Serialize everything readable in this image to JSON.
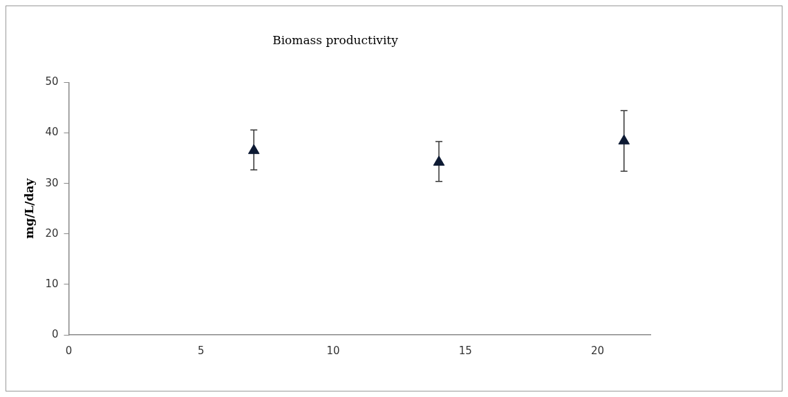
{
  "chart_data": {
    "type": "scatter",
    "title": "Biomass productivity",
    "ylabel": "mg/L/day",
    "series": [
      {
        "color": "#0d1a33",
        "x": [
          7,
          14,
          21
        ],
        "values": [
          36.5,
          34.2,
          38.4
        ],
        "errors": [
          [
            32.7,
            40.6
          ],
          [
            30.4,
            38.3
          ],
          [
            32.4,
            44.4
          ]
        ]
      }
    ],
    "xlim": [
      0,
      22
    ],
    "xticks": [
      0,
      5,
      10,
      15,
      20
    ],
    "ylim": [
      0,
      50
    ],
    "yticks": [
      0,
      10,
      20,
      30,
      40,
      50
    ],
    "grid": false,
    "legend": false,
    "marker": "triangle",
    "line_style": "none"
  }
}
